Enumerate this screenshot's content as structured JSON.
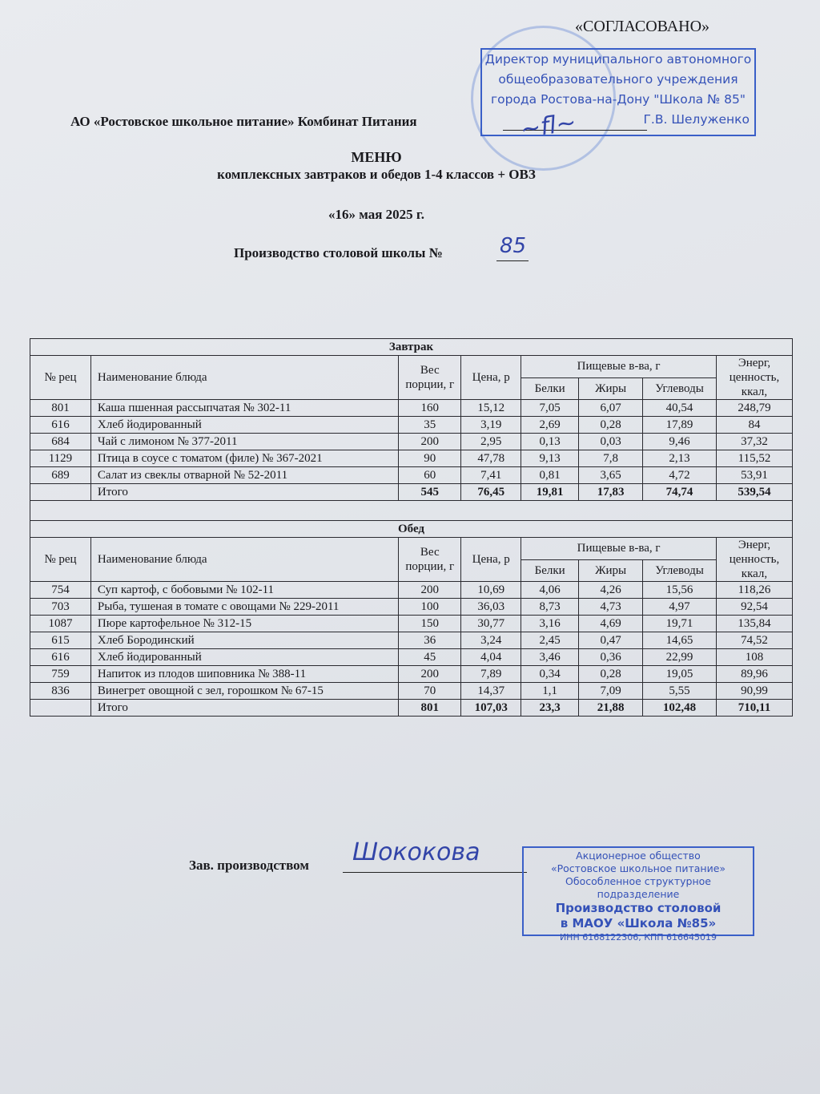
{
  "approval": {
    "title": "«СОГЛАСОВАНО»",
    "stamp_lines": [
      "Директор муниципального автономного",
      "общеобразовательного учреждения",
      "города Ростова-на-Дону \"Школа № 85\"",
      "Г.В. Шелуженко"
    ]
  },
  "header": {
    "org": "АО «Ростовское школьное питание» Комбинат Питания",
    "title": "МЕНЮ",
    "subtitle": "комплексных завтраков и обедов 1-4 классов + ОВЗ",
    "date": "«16» мая 2025 г.",
    "production": "Производство столовой школы №",
    "school_number_handwritten": "85"
  },
  "columns": {
    "rec": "№ рец",
    "name": "Наименование блюда",
    "weight": "Вес порции, г",
    "price": "Цена, р",
    "nutrients": "Пищевые в-ва, г",
    "protein": "Белки",
    "fat": "Жиры",
    "carbs": "Углеводы",
    "energy": "Энерг, ценность, ккал,"
  },
  "breakfast": {
    "title": "Завтрак",
    "rows": [
      [
        "801",
        "Каша пшенная рассыпчатая № 302-11",
        "160",
        "15,12",
        "7,05",
        "6,07",
        "40,54",
        "248,79"
      ],
      [
        "616",
        "Хлеб йодированный",
        "35",
        "3,19",
        "2,69",
        "0,28",
        "17,89",
        "84"
      ],
      [
        "684",
        "Чай с лимоном № 377-2011",
        "200",
        "2,95",
        "0,13",
        "0,03",
        "9,46",
        "37,32"
      ],
      [
        "1129",
        "Птица в соусе с томатом (филе) № 367-2021",
        "90",
        "47,78",
        "9,13",
        "7,8",
        "2,13",
        "115,52"
      ],
      [
        "689",
        "Салат из свеклы отварной № 52-2011",
        "60",
        "7,41",
        "0,81",
        "3,65",
        "4,72",
        "53,91"
      ]
    ],
    "total": [
      "",
      "Итого",
      "545",
      "76,45",
      "19,81",
      "17,83",
      "74,74",
      "539,54"
    ]
  },
  "lunch": {
    "title": "Обед",
    "rows": [
      [
        "754",
        "Суп картоф, с бобовыми № 102-11",
        "200",
        "10,69",
        "4,06",
        "4,26",
        "15,56",
        "118,26"
      ],
      [
        "703",
        "Рыба, тушеная в томате с овощами № 229-2011",
        "100",
        "36,03",
        "8,73",
        "4,73",
        "4,97",
        "92,54"
      ],
      [
        "1087",
        "Пюре картофельное № 312-15",
        "150",
        "30,77",
        "3,16",
        "4,69",
        "19,71",
        "135,84"
      ],
      [
        "615",
        "Хлеб Бородинский",
        "36",
        "3,24",
        "2,45",
        "0,47",
        "14,65",
        "74,52"
      ],
      [
        "616",
        "Хлеб йодированный",
        "45",
        "4,04",
        "3,46",
        "0,36",
        "22,99",
        "108"
      ],
      [
        "759",
        "Напиток из плодов шиповника № 388-11",
        "200",
        "7,89",
        "0,34",
        "0,28",
        "19,05",
        "89,96"
      ],
      [
        "836",
        "Винегрет овощной с зел, горошком № 67-15",
        "70",
        "14,37",
        "1,1",
        "7,09",
        "5,55",
        "90,99"
      ]
    ],
    "total": [
      "",
      "Итого",
      "801",
      "107,03",
      "23,3",
      "21,88",
      "102,48",
      "710,11"
    ]
  },
  "footer": {
    "label": "Зав. производством",
    "signature": "Шококова",
    "stamp_lines": [
      "Акционерное общество",
      "«Ростовское школьное питание»",
      "Обособленное структурное подразделение",
      "Производство столовой",
      "в МАОУ «Школа №85»",
      "ИНН 6168122306, КПП 616645019"
    ]
  },
  "colors": {
    "stamp_blue": "#3552b8",
    "paper": "#e6e8ec",
    "ink": "#1a1a1e"
  }
}
